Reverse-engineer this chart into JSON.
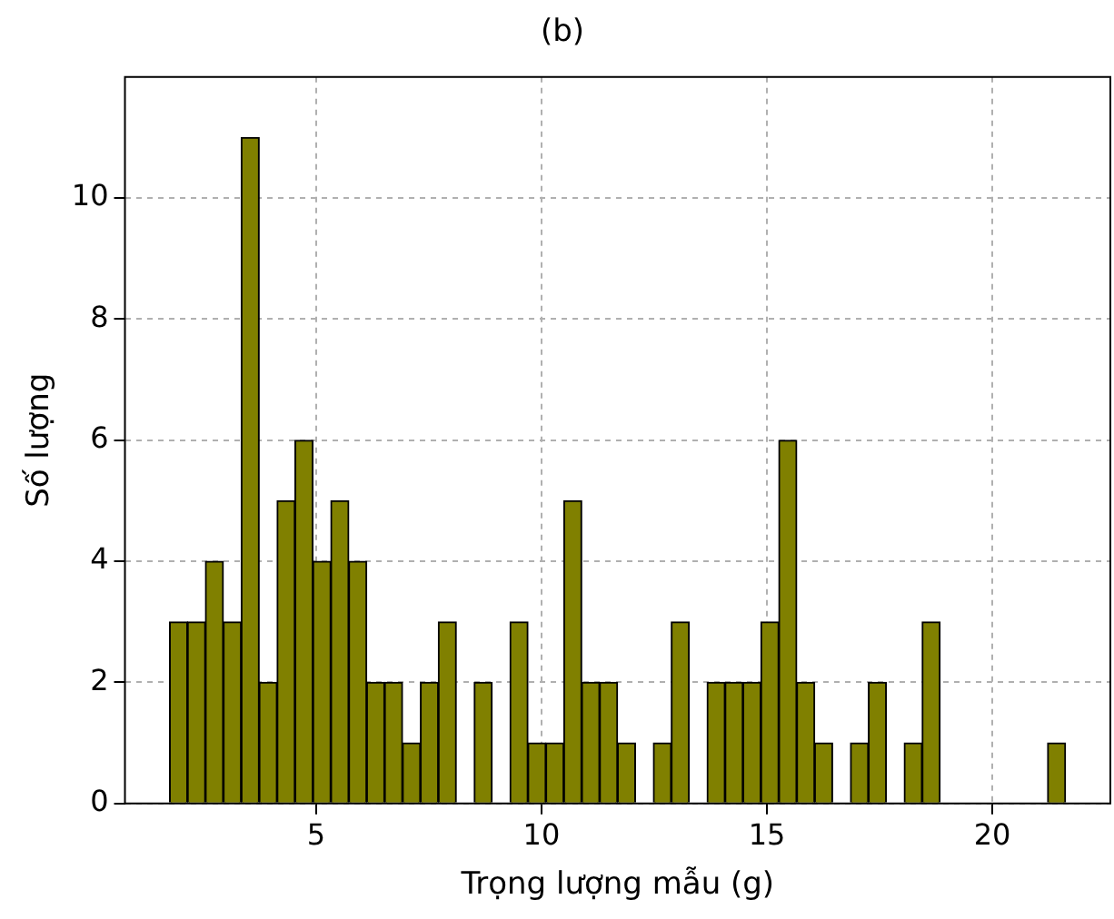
{
  "chart_data": {
    "type": "histogram",
    "title": "(b)",
    "xlabel": "Trọng lượng mẫu (g)",
    "ylabel": "Số lượng",
    "bins": [
      1.75,
      2.1475,
      2.545,
      2.9425,
      3.34,
      3.7375,
      4.135,
      4.5325,
      4.93,
      5.3275,
      5.725,
      6.1225,
      6.52,
      6.9175,
      7.315,
      7.7125,
      8.11,
      8.5075,
      8.905,
      9.3025,
      9.7,
      10.0975,
      10.495,
      10.8925,
      11.29,
      11.6875,
      12.085,
      12.4825,
      12.88,
      13.2775,
      13.675,
      14.0725,
      14.47,
      14.8675,
      15.265,
      15.6625,
      16.06,
      16.4575,
      16.855,
      17.2525,
      17.65,
      18.0475,
      18.445,
      18.8425,
      19.24,
      19.6375,
      20.035,
      20.4325,
      20.83,
      21.2275,
      21.625
    ],
    "values": [
      3,
      3,
      4,
      3,
      11,
      2,
      5,
      6,
      4,
      5,
      4,
      2,
      2,
      1,
      2,
      3,
      0,
      2,
      0,
      3,
      1,
      1,
      5,
      2,
      2,
      1,
      0,
      1,
      3,
      0,
      2,
      2,
      2,
      3,
      6,
      2,
      1,
      0,
      1,
      2,
      0,
      1,
      3,
      0,
      0,
      0,
      0,
      0,
      0,
      1
    ],
    "color": "#808000",
    "xlim": [
      0.76,
      22.62
    ],
    "ylim": [
      0,
      12
    ],
    "xticks": [
      5,
      10,
      15,
      20
    ],
    "yticks": [
      0,
      2,
      4,
      6,
      8,
      10
    ],
    "grid": true,
    "legend": false
  }
}
